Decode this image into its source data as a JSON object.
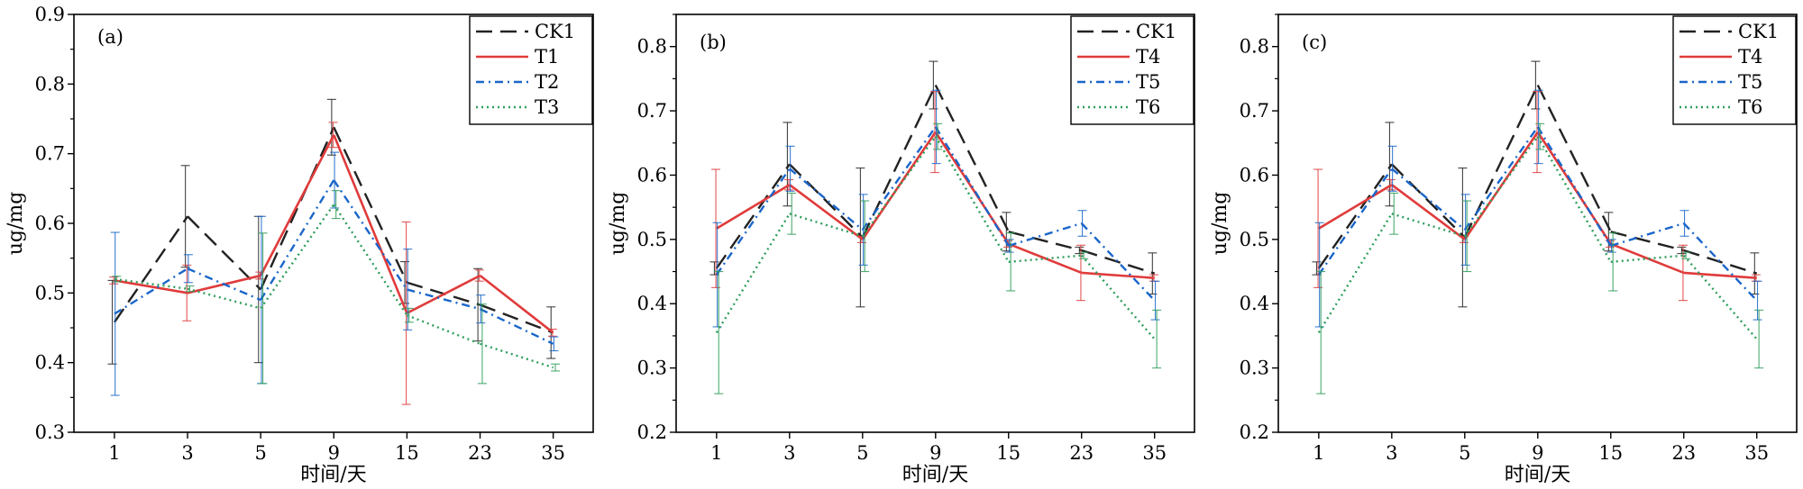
{
  "chart_data": [
    {
      "type": "line",
      "panel_label": "(a)",
      "categories": [
        "1",
        "3",
        "5",
        "9",
        "15",
        "23",
        "35"
      ],
      "xlabel": "时间/天",
      "ylabel": "ug/mg",
      "ylim": [
        0.3,
        0.9
      ],
      "yticks": [
        "0.3",
        "0.4",
        "0.5",
        "0.6",
        "0.7",
        "0.8",
        "0.9"
      ],
      "grid": false,
      "legend_position": "top-right",
      "series": [
        {
          "name": "CK1",
          "color": "#222222",
          "dash": "long-dash",
          "values": [
            0.458,
            0.61,
            0.505,
            0.738,
            0.515,
            0.483,
            0.443
          ],
          "errors": [
            0.06,
            0.073,
            0.105,
            0.04,
            0.03,
            0.052,
            0.037
          ]
        },
        {
          "name": "T1",
          "color": "#e03b3b",
          "dash": "solid",
          "values": [
            0.518,
            0.5,
            0.525,
            0.727,
            0.471,
            0.525,
            0.443
          ],
          "errors": [
            0.005,
            0.04,
            0.005,
            0.018,
            0.131,
            0.008,
            0.005
          ]
        },
        {
          "name": "T2",
          "color": "#1a66c9",
          "dash": "dash-dot",
          "values": [
            0.47,
            0.535,
            0.49,
            0.662,
            0.505,
            0.477,
            0.427
          ],
          "errors": [
            0.117,
            0.02,
            0.12,
            0.04,
            0.058,
            0.02,
            0.01
          ]
        },
        {
          "name": "T3",
          "color": "#2e9e5b",
          "dash": "dotted",
          "values": [
            0.52,
            0.506,
            0.478,
            0.627,
            0.468,
            0.427,
            0.393
          ],
          "errors": [
            0.004,
            0.004,
            0.108,
            0.02,
            0.01,
            0.057,
            0.005
          ]
        }
      ]
    },
    {
      "type": "line",
      "panel_label": "(b)",
      "categories": [
        "1",
        "3",
        "5",
        "9",
        "15",
        "23",
        "35"
      ],
      "xlabel": "时间/天",
      "ylabel": "ug/mg",
      "ylim": [
        0.2,
        0.85
      ],
      "yticks": [
        "0.2",
        "0.3",
        "0.4",
        "0.5",
        "0.6",
        "0.7",
        "0.8"
      ],
      "grid": false,
      "legend_position": "top-right",
      "series": [
        {
          "name": "CK1",
          "color": "#222222",
          "dash": "long-dash",
          "values": [
            0.455,
            0.617,
            0.503,
            0.74,
            0.512,
            0.483,
            0.447
          ],
          "errors": [
            0.01,
            0.065,
            0.108,
            0.037,
            0.03,
            0.005,
            0.032
          ]
        },
        {
          "name": "T4",
          "color": "#e03b3b",
          "dash": "solid",
          "values": [
            0.517,
            0.585,
            0.5,
            0.667,
            0.493,
            0.448,
            0.44
          ],
          "errors": [
            0.092,
            0.008,
            0.005,
            0.063,
            0.005,
            0.043,
            0.005
          ]
        },
        {
          "name": "T5",
          "color": "#1a66c9",
          "dash": "dash-dot",
          "values": [
            0.445,
            0.61,
            0.515,
            0.675,
            0.49,
            0.525,
            0.405
          ],
          "errors": [
            0.081,
            0.035,
            0.055,
            0.057,
            0.01,
            0.02,
            0.03
          ]
        },
        {
          "name": "T6",
          "color": "#2e9e5b",
          "dash": "dotted",
          "values": [
            0.355,
            0.54,
            0.505,
            0.66,
            0.465,
            0.475,
            0.345
          ],
          "errors": [
            0.095,
            0.032,
            0.055,
            0.02,
            0.045,
            0.005,
            0.045
          ]
        }
      ]
    },
    {
      "type": "line",
      "panel_label": "(c)",
      "categories": [
        "1",
        "3",
        "5",
        "9",
        "15",
        "23",
        "35"
      ],
      "xlabel": "时间/天",
      "ylabel": "ug/mg",
      "ylim": [
        0.2,
        0.85
      ],
      "yticks": [
        "0.2",
        "0.3",
        "0.4",
        "0.5",
        "0.6",
        "0.7",
        "0.8"
      ],
      "grid": false,
      "legend_position": "top-right",
      "series": [
        {
          "name": "CK1",
          "color": "#222222",
          "dash": "long-dash",
          "values": [
            0.455,
            0.617,
            0.503,
            0.74,
            0.512,
            0.483,
            0.447
          ],
          "errors": [
            0.01,
            0.065,
            0.108,
            0.037,
            0.03,
            0.005,
            0.032
          ]
        },
        {
          "name": "T4",
          "color": "#e03b3b",
          "dash": "solid",
          "values": [
            0.517,
            0.585,
            0.5,
            0.667,
            0.493,
            0.448,
            0.44
          ],
          "errors": [
            0.092,
            0.008,
            0.005,
            0.063,
            0.005,
            0.043,
            0.005
          ]
        },
        {
          "name": "T5",
          "color": "#1a66c9",
          "dash": "dash-dot",
          "values": [
            0.445,
            0.61,
            0.515,
            0.675,
            0.49,
            0.525,
            0.405
          ],
          "errors": [
            0.081,
            0.035,
            0.055,
            0.057,
            0.01,
            0.02,
            0.03
          ]
        },
        {
          "name": "T6",
          "color": "#2e9e5b",
          "dash": "dotted",
          "values": [
            0.355,
            0.54,
            0.505,
            0.66,
            0.465,
            0.475,
            0.345
          ],
          "errors": [
            0.095,
            0.032,
            0.055,
            0.02,
            0.045,
            0.005,
            0.045
          ]
        }
      ]
    }
  ]
}
